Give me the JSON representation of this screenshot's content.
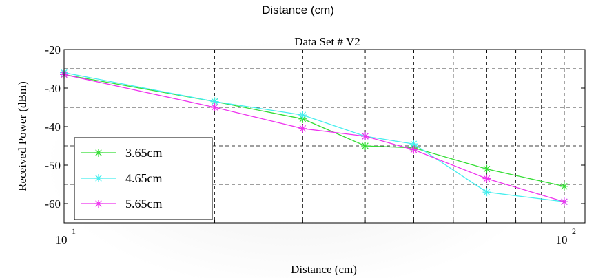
{
  "header": {
    "super_title": "Distance (cm)"
  },
  "chart_data": {
    "type": "line",
    "title": "Data Set # V2",
    "xlabel": "Distance (cm)",
    "ylabel": "Received Power (dBm)",
    "xscale": "log",
    "xlim": [
      10,
      110
    ],
    "ylim": [
      -65,
      -20
    ],
    "grid": true,
    "y_ticks": [
      -20,
      -30,
      -40,
      -50,
      -60
    ],
    "x_tick_labels": [
      {
        "value": 10,
        "base": "10",
        "exp": "1"
      },
      {
        "value": 100,
        "base": "10",
        "exp": "2"
      }
    ],
    "legend_position": "bottom-left",
    "series": [
      {
        "name": "3.65cm",
        "color": "#33dd33",
        "x": [
          10,
          20,
          30,
          40,
          50,
          70,
          100
        ],
        "y": [
          -26.5,
          -33.5,
          -38,
          -45,
          -45.5,
          -51,
          -55.5
        ]
      },
      {
        "name": "4.65cm",
        "color": "#44eeee",
        "x": [
          10,
          20,
          30,
          40,
          50,
          70,
          100
        ],
        "y": [
          -26,
          -33.5,
          -37,
          -42.5,
          -44.5,
          -57,
          -59.5
        ]
      },
      {
        "name": "5.65cm",
        "color": "#ee33ee",
        "x": [
          10,
          20,
          30,
          40,
          50,
          70,
          100
        ],
        "y": [
          -26.5,
          -35,
          -40.5,
          -42.5,
          -46,
          -53.5,
          -59.5
        ]
      }
    ]
  }
}
